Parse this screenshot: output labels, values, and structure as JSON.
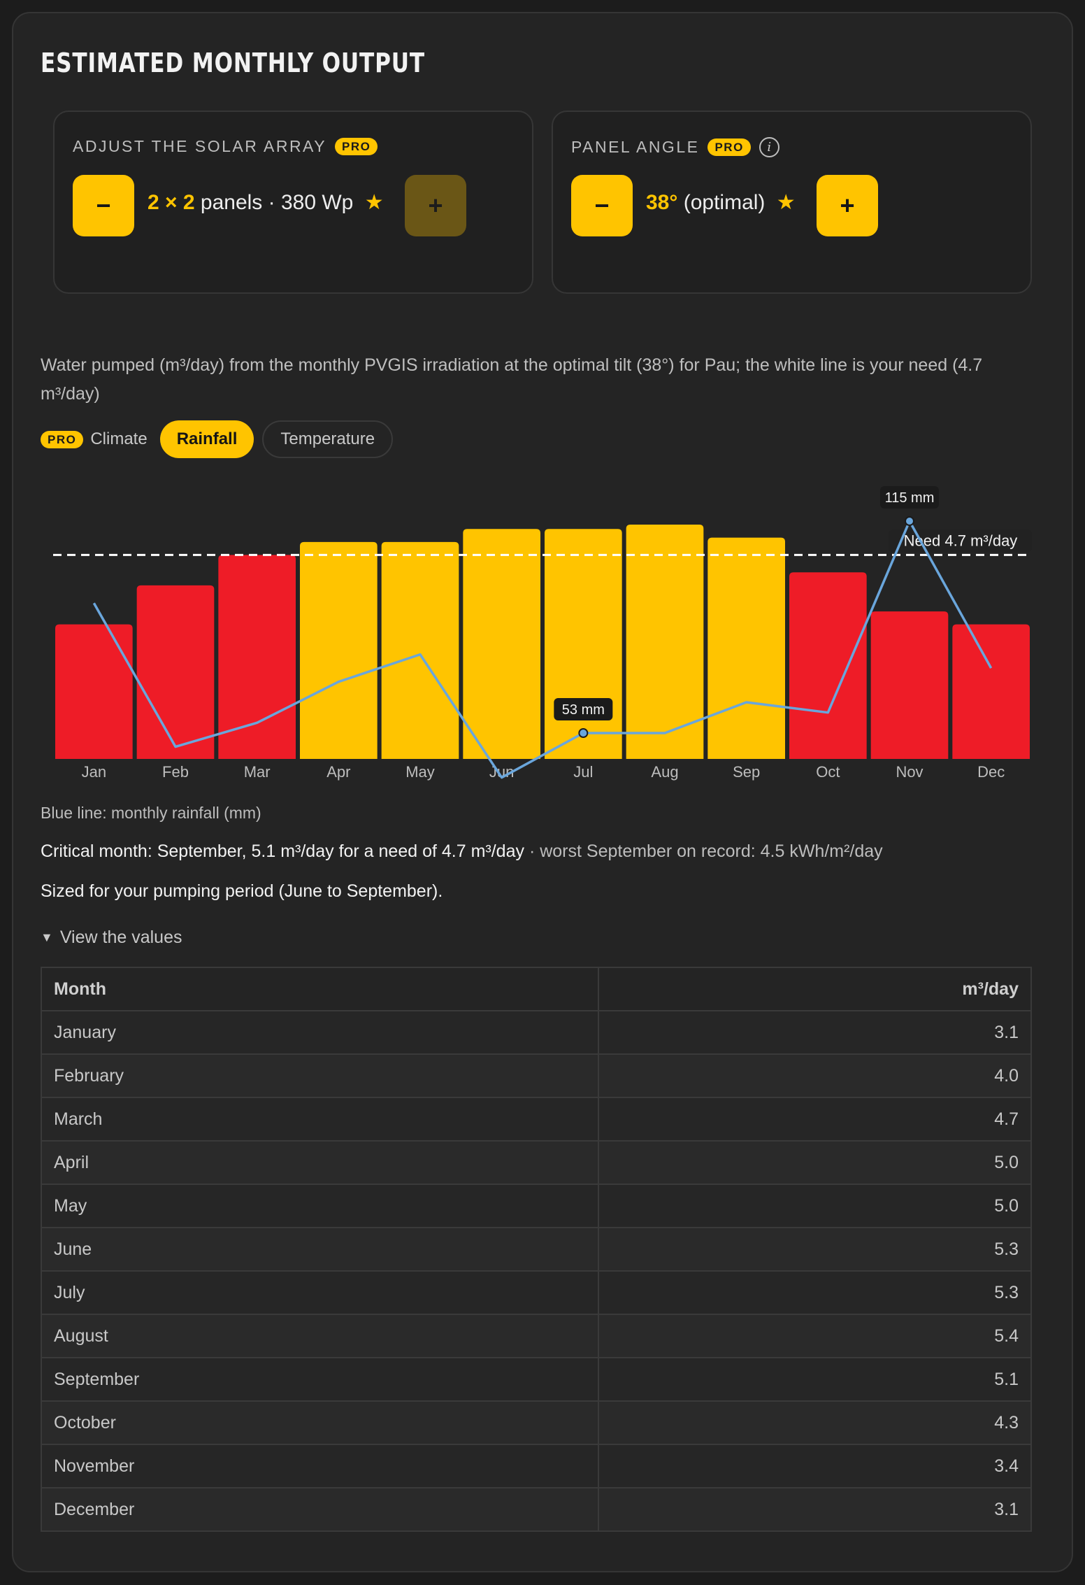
{
  "section": {
    "title": "ESTIMATED MONTHLY OUTPUT"
  },
  "array_control": {
    "label": "ADJUST THE SOLAR ARRAY",
    "badge": "PRO",
    "minus": "−",
    "plus": "+",
    "value_highlight": "2 × 2",
    "value_text": "panels · 380 Wp",
    "star": "★"
  },
  "angle_control": {
    "label": "PANEL ANGLE",
    "badge": "PRO",
    "info": "i",
    "minus": "−",
    "plus": "+",
    "value_highlight": "38°",
    "value_text": "(optimal)",
    "star": "★"
  },
  "description": "Water pumped (m³/day) from the monthly PVGIS irradiation at the optimal tilt (38°) for Pau; the white line is your need (4.7 m³/day)",
  "overlay": {
    "badge": "PRO",
    "label": "Climate",
    "options": [
      "Rainfall",
      "Temperature"
    ],
    "active": "Rainfall"
  },
  "chart_data": {
    "type": "bar",
    "categories": [
      "Jan",
      "Feb",
      "Mar",
      "Apr",
      "May",
      "Jun",
      "Jul",
      "Aug",
      "Sep",
      "Oct",
      "Nov",
      "Dec"
    ],
    "series": [
      {
        "values": [
          3.1,
          4.0,
          4.7,
          5.0,
          5.0,
          5.3,
          5.3,
          5.4,
          5.1,
          4.3,
          3.4,
          3.1
        ]
      },
      {
        "type": "line",
        "values": [
          91,
          49,
          56,
          68,
          76,
          40,
          53,
          53,
          62,
          59,
          115,
          72
        ]
      }
    ],
    "bar_colors": [
      "#ee1c27",
      "#ee1c27",
      "#ee1c27",
      "#ffc400",
      "#ffc400",
      "#ffc400",
      "#ffc400",
      "#ffc400",
      "#ffc400",
      "#ee1c27",
      "#ee1c27",
      "#ee1c27"
    ],
    "line_color": "#6aa6dc",
    "need_line": {
      "value": 4.7,
      "label": "Need 4.7 m³/day"
    },
    "point_labels": [
      {
        "index": 6,
        "text": "53 mm"
      },
      {
        "index": 10,
        "text": "115 mm"
      }
    ]
  },
  "legend_note": "Blue line: monthly rainfall (mm)",
  "critical": {
    "main": "Critical month: September, 5.1 m³/day for a need of 4.7 m³/day",
    "secondary": " · worst September on record: 4.5 kWh/m²/day"
  },
  "sized_note": "Sized for your pumping period (June to September).",
  "values_toggle": {
    "arrow": "▼",
    "label": "View the values"
  },
  "table": {
    "headers": [
      "Month",
      "m³/day"
    ],
    "rows": [
      [
        "January",
        "3.1"
      ],
      [
        "February",
        "4.0"
      ],
      [
        "March",
        "4.7"
      ],
      [
        "April",
        "5.0"
      ],
      [
        "May",
        "5.0"
      ],
      [
        "June",
        "5.3"
      ],
      [
        "July",
        "5.3"
      ],
      [
        "August",
        "5.4"
      ],
      [
        "September",
        "5.1"
      ],
      [
        "October",
        "4.3"
      ],
      [
        "November",
        "3.4"
      ],
      [
        "December",
        "3.1"
      ]
    ]
  }
}
